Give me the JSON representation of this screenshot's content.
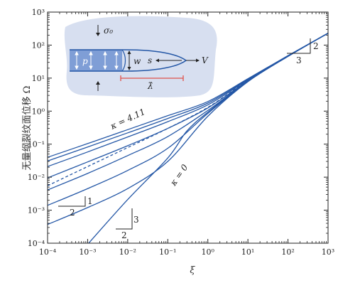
{
  "chart_data": {
    "type": "line",
    "xscale": "log",
    "yscale": "log",
    "xlim": [
      0.0001,
      1000
    ],
    "ylim": [
      0.0001,
      1000
    ],
    "xlabel": "ξ",
    "ylabel": "无量纲裂纹面位移 Ω",
    "x_ticks": [
      "10⁻⁴",
      "10⁻³",
      "10⁻²",
      "10⁻¹",
      "10⁰",
      "10¹",
      "10²",
      "10³"
    ],
    "y_ticks": [
      "10⁻⁴",
      "10⁻³",
      "10⁻²",
      "10⁻¹",
      "10⁰",
      "10¹",
      "10²",
      "10³"
    ],
    "series": [
      {
        "dashed": false,
        "points": [
          [
            0.0001,
            0.04
          ],
          [
            0.001,
            0.104
          ],
          [
            0.01,
            0.275
          ],
          [
            0.1,
            0.73
          ],
          [
            1,
            1.95
          ],
          [
            10,
            9.6
          ],
          [
            100,
            48
          ],
          [
            1000,
            230
          ]
        ]
      },
      {
        "dashed": false,
        "points": [
          [
            0.0001,
            0.031
          ],
          [
            0.001,
            0.082
          ],
          [
            0.01,
            0.22
          ],
          [
            0.1,
            0.6
          ],
          [
            1,
            1.75
          ],
          [
            10,
            9.2
          ],
          [
            100,
            47
          ],
          [
            1000,
            230
          ]
        ]
      },
      {
        "dashed": false,
        "points": [
          [
            0.0001,
            0.021
          ],
          [
            0.001,
            0.058
          ],
          [
            0.01,
            0.165
          ],
          [
            0.1,
            0.48
          ],
          [
            1,
            1.55
          ],
          [
            10,
            8.8
          ],
          [
            100,
            46.5
          ],
          [
            1000,
            230
          ]
        ]
      },
      {
        "dashed": true,
        "points": [
          [
            0.0001,
            0.0055
          ],
          [
            0.001,
            0.021
          ],
          [
            0.01,
            0.079
          ],
          [
            0.1,
            0.3
          ],
          [
            1,
            1.3
          ],
          [
            10,
            8.5
          ],
          [
            100,
            46
          ],
          [
            1000,
            230
          ]
        ]
      },
      {
        "dashed": false,
        "points": [
          [
            0.0001,
            0.0095
          ],
          [
            0.001,
            0.029
          ],
          [
            0.01,
            0.09
          ],
          [
            0.1,
            0.3
          ],
          [
            1,
            1.25
          ],
          [
            10,
            8.3
          ],
          [
            100,
            46
          ],
          [
            1000,
            230
          ]
        ]
      },
      {
        "dashed": false,
        "points": [
          [
            0.0001,
            0.0041
          ],
          [
            0.001,
            0.013
          ],
          [
            0.01,
            0.045
          ],
          [
            0.1,
            0.17
          ],
          [
            1,
            1.05
          ],
          [
            10,
            8.1
          ],
          [
            100,
            46
          ],
          [
            1000,
            230
          ]
        ]
      },
      {
        "dashed": false,
        "points": [
          [
            0.0001,
            0.0014
          ],
          [
            0.001,
            0.0045
          ],
          [
            0.01,
            0.016
          ],
          [
            0.1,
            0.075
          ],
          [
            1,
            0.85
          ],
          [
            10,
            7.9
          ],
          [
            100,
            45.5
          ],
          [
            1000,
            230
          ]
        ]
      },
      {
        "dashed": false,
        "points": [
          [
            0.0001,
            0.00037
          ],
          [
            0.001,
            0.0012
          ],
          [
            0.01,
            0.0045
          ],
          [
            0.1,
            0.03
          ],
          [
            1,
            0.7
          ],
          [
            10,
            7.8
          ],
          [
            100,
            45.5
          ],
          [
            1000,
            230
          ]
        ]
      },
      {
        "dashed": false,
        "points": [
          [
            0.00106,
            0.0001
          ],
          [
            0.01,
            0.0021
          ],
          [
            0.1,
            0.038
          ],
          [
            0.3,
            0.25
          ],
          [
            1,
            0.93
          ],
          [
            10,
            8.0
          ],
          [
            100,
            46
          ],
          [
            1000,
            230
          ]
        ]
      }
    ],
    "annotations": {
      "kappa_top": "κ = 4.11",
      "kappa_zero": "κ = 0",
      "slope_half_rise": "1",
      "slope_half_run": "2",
      "slope_32_rise": "3",
      "slope_32_run": "2",
      "slope_23_rise": "2",
      "slope_23_run": "3"
    },
    "inset": {
      "sigma": "σ₀",
      "p": "p",
      "w": "w",
      "s": "s",
      "v": "V",
      "lambda": "λ̂"
    },
    "colors": {
      "line": "#2457a6",
      "inset_bg": "#d7dff0",
      "fluid": "#7f9ed6",
      "lambda_bar": "#e0524a"
    }
  }
}
